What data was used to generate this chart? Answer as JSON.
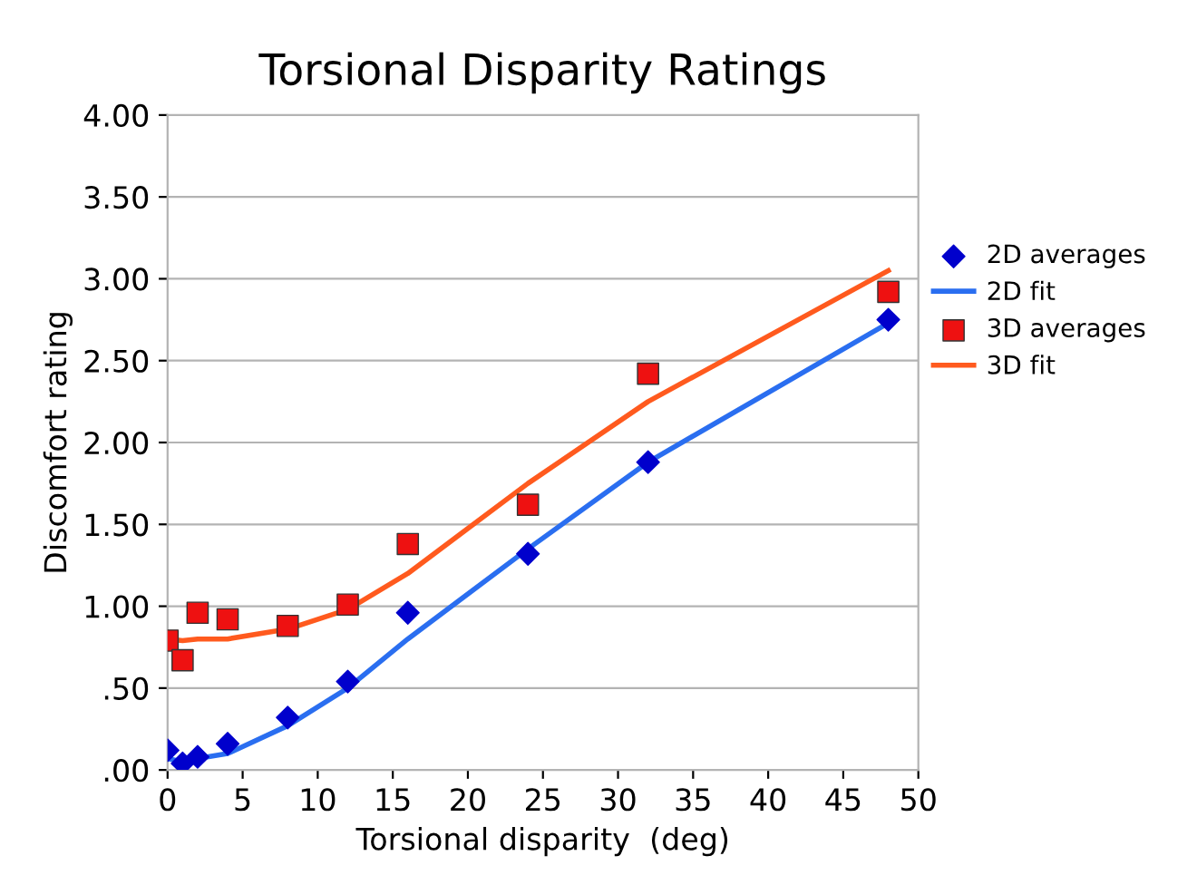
{
  "chart_data": {
    "type": "line",
    "title": "Torsional Disparity Ratings",
    "xlabel": "Torsional disparity  (deg)",
    "ylabel": "Discomfort rating",
    "xlim": [
      0,
      50
    ],
    "xticks": [
      0,
      5,
      10,
      15,
      20,
      25,
      30,
      35,
      40,
      45,
      50
    ],
    "ylim": [
      0,
      4
    ],
    "yticks": [
      {
        "value": 0,
        "label": ".00"
      },
      {
        "value": 0.5,
        "label": ".50"
      },
      {
        "value": 1,
        "label": "1.00"
      },
      {
        "value": 1.5,
        "label": "1.50"
      },
      {
        "value": 2,
        "label": "2.00"
      },
      {
        "value": 2.5,
        "label": "2.50"
      },
      {
        "value": 3,
        "label": "3.00"
      },
      {
        "value": 3.5,
        "label": "3.50"
      },
      {
        "value": 4,
        "label": "4.00"
      }
    ],
    "grid": "y",
    "legend": "right",
    "x": [
      0,
      1,
      2,
      4,
      8,
      12,
      16,
      24,
      32,
      48
    ],
    "series": [
      {
        "name": "2D averages",
        "type": "scatter",
        "marker": "diamond",
        "color": "#0000cc",
        "values": [
          0.12,
          0.04,
          0.08,
          0.16,
          0.32,
          0.54,
          0.96,
          1.32,
          1.88,
          2.75
        ]
      },
      {
        "name": "2D fit",
        "marker": "none",
        "color": "#2a6ef0",
        "values": [
          0.07,
          0.05,
          0.07,
          0.1,
          0.27,
          0.5,
          0.8,
          1.35,
          1.88,
          2.73
        ]
      },
      {
        "name": "3D averages",
        "type": "scatter",
        "marker": "square",
        "color": "#ee1111",
        "values": [
          0.79,
          0.67,
          0.96,
          0.92,
          0.88,
          1.01,
          1.38,
          1.62,
          2.42,
          2.92
        ]
      },
      {
        "name": "3D fit",
        "marker": "none",
        "color": "#ff5a1e",
        "values": [
          0.8,
          0.79,
          0.8,
          0.8,
          0.86,
          0.98,
          1.2,
          1.75,
          2.25,
          3.05
        ]
      }
    ]
  }
}
